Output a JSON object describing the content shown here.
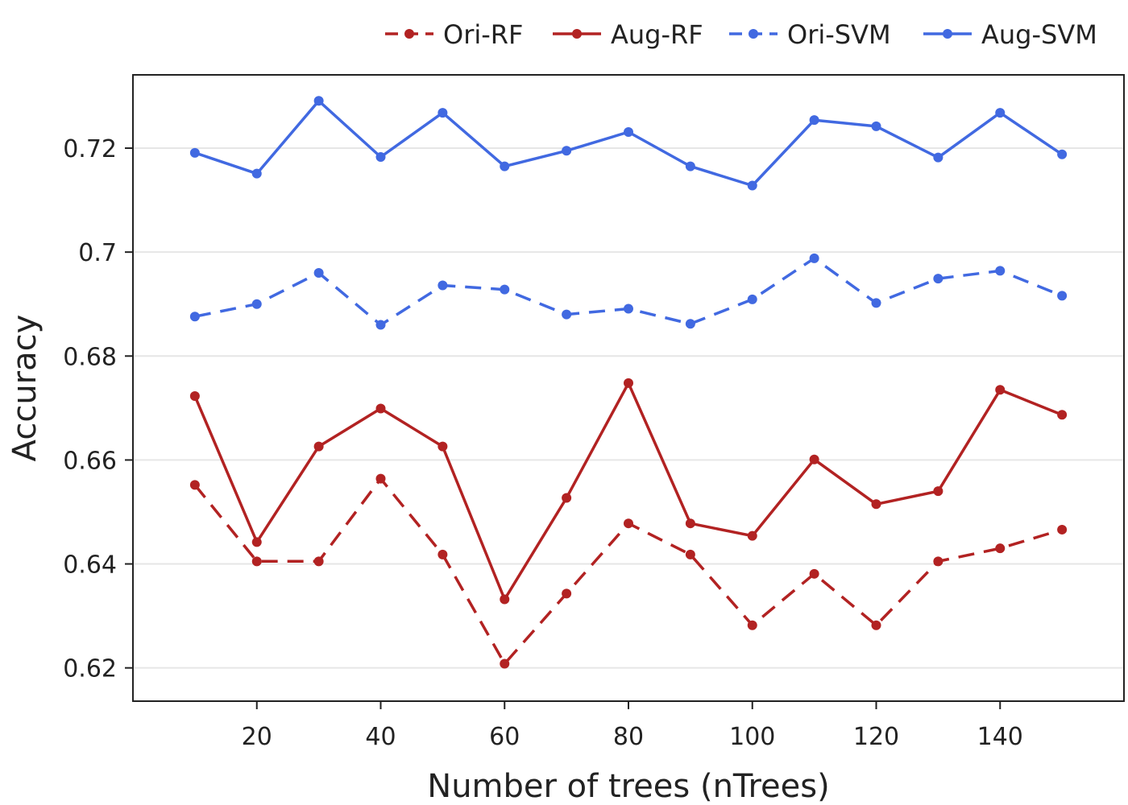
{
  "chart_data": {
    "type": "line",
    "title": "",
    "xlabel": "Number of trees (nTrees)",
    "ylabel": "Accuracy",
    "x": [
      10,
      20,
      30,
      40,
      50,
      60,
      70,
      80,
      90,
      100,
      110,
      120,
      130,
      140,
      150
    ],
    "xlim": [
      0,
      160
    ],
    "ylim": [
      0.6136,
      0.7341
    ],
    "xticks": [
      20,
      40,
      60,
      80,
      100,
      120,
      140
    ],
    "xtick_labels": [
      "20",
      "40",
      "60",
      "80",
      "100",
      "120",
      "140"
    ],
    "yticks": [
      0.62,
      0.64,
      0.66,
      0.68,
      0.7,
      0.72
    ],
    "ytick_labels": [
      "0.62",
      "0.64",
      "0.66",
      "0.68",
      "0.7",
      "0.72"
    ],
    "grid": "horizontal",
    "legend_position": "top-right",
    "series": [
      {
        "name": "Ori-RF",
        "color": "#b22222",
        "dash": "dashed",
        "values": [
          0.6552,
          0.6405,
          0.6405,
          0.6564,
          0.6418,
          0.6208,
          0.6343,
          0.6478,
          0.6418,
          0.6282,
          0.6381,
          0.6282,
          0.6405,
          0.643,
          0.6466
        ]
      },
      {
        "name": "Aug-RF",
        "color": "#b22222",
        "dash": "solid",
        "values": [
          0.6723,
          0.6442,
          0.6626,
          0.6699,
          0.6626,
          0.6332,
          0.6527,
          0.6748,
          0.6478,
          0.6454,
          0.6601,
          0.6515,
          0.654,
          0.6735,
          0.6687
        ]
      },
      {
        "name": "Ori-SVM",
        "color": "#4169e1",
        "dash": "dashed",
        "values": [
          0.6876,
          0.69,
          0.696,
          0.686,
          0.6936,
          0.6928,
          0.688,
          0.6891,
          0.6862,
          0.6909,
          0.6988,
          0.6902,
          0.6949,
          0.6964,
          0.6916
        ]
      },
      {
        "name": "Aug-SVM",
        "color": "#4169e1",
        "dash": "solid",
        "values": [
          0.7191,
          0.7151,
          0.7291,
          0.7183,
          0.7268,
          0.7165,
          0.7195,
          0.7231,
          0.7165,
          0.7128,
          0.7254,
          0.7242,
          0.7182,
          0.7268,
          0.7188
        ]
      }
    ]
  }
}
